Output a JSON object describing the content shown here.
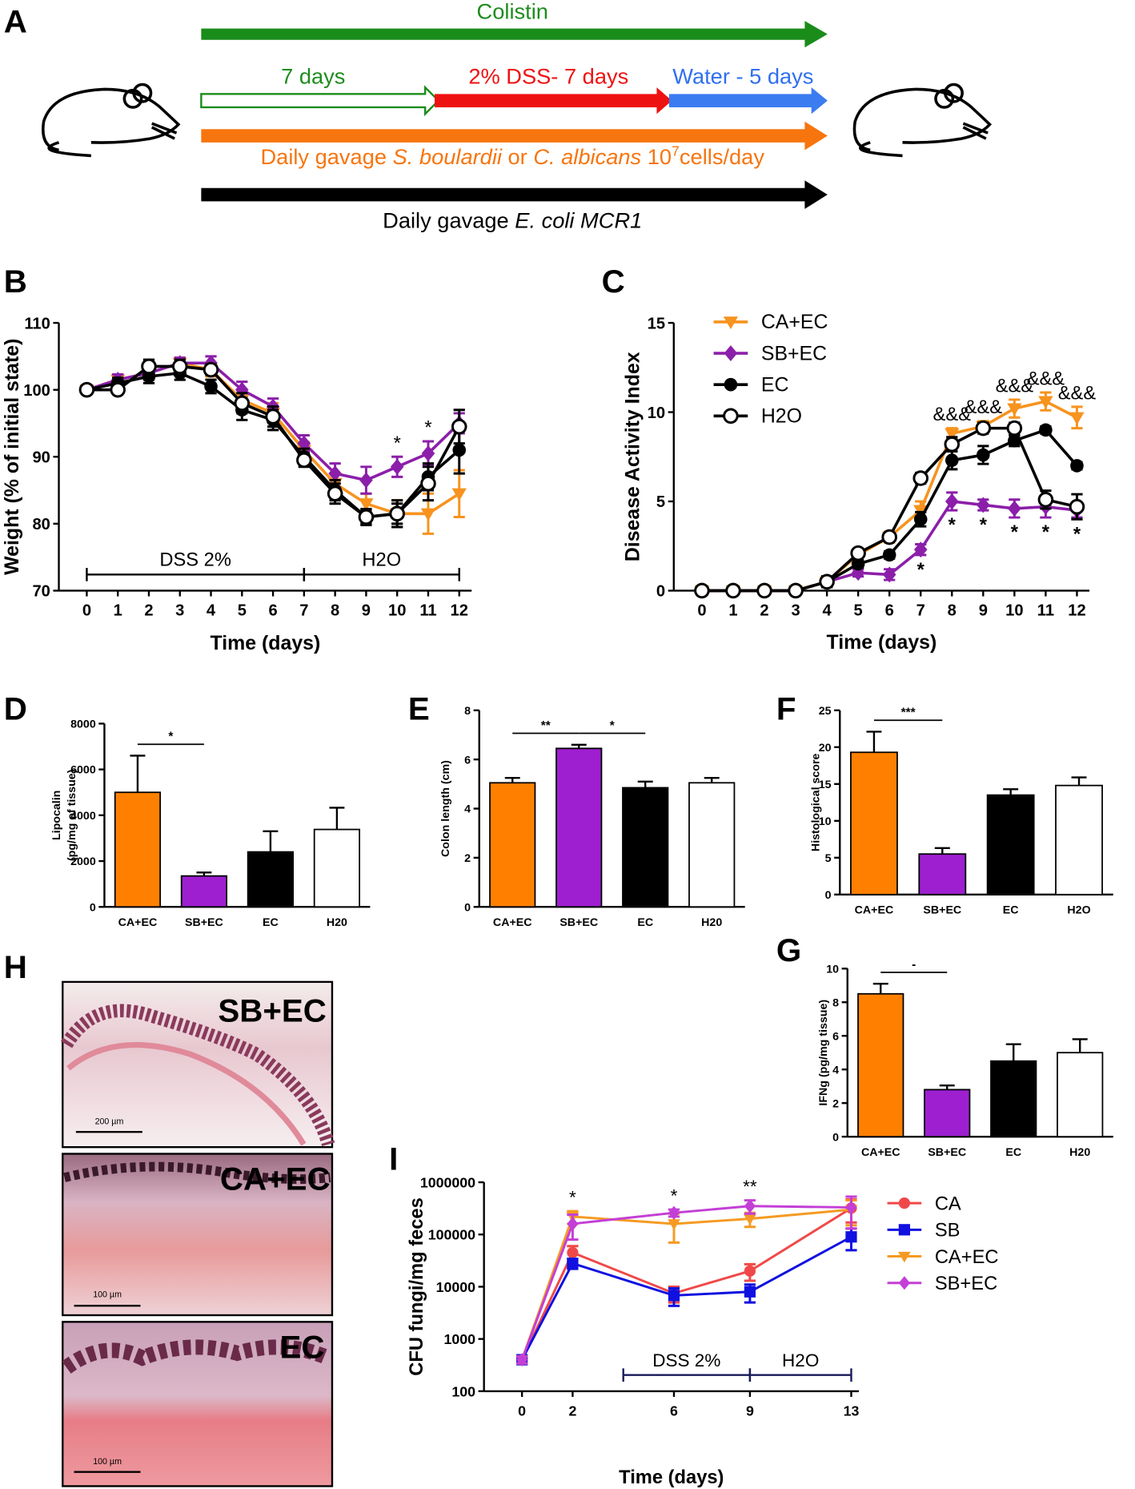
{
  "panel_labels": [
    "A",
    "B",
    "C",
    "D",
    "E",
    "F",
    "G",
    "H",
    "I"
  ],
  "timeline": {
    "colistin": "Colistin",
    "pre": "7 days",
    "dss": "2% DSS- 7 days",
    "water": "Water - 5 days",
    "yeast": [
      "Daily gavage ",
      "S. boulardii",
      " or ",
      "C. albicans",
      " 10",
      "7",
      "cells/day"
    ],
    "ecoli": [
      "Daily gavage ",
      "E. coli MCR1"
    ]
  },
  "histology": {
    "labels": [
      "SB+EC",
      "CA+EC",
      "EC"
    ],
    "scale_bars": [
      "200 µm",
      "100 µm",
      "100 µm"
    ]
  },
  "chart_data": [
    {
      "type": "line",
      "ylabel": "Weight (% of initial state)",
      "xlabel": "Time (days)",
      "x": [
        0,
        1,
        2,
        3,
        4,
        5,
        6,
        7,
        8,
        9,
        10,
        11,
        12
      ],
      "xlim": [
        -0.9,
        12.4
      ],
      "xticks": [
        0,
        1,
        2,
        3,
        4,
        5,
        6,
        7,
        8,
        9,
        10,
        11,
        12
      ],
      "ylim": [
        70,
        110
      ],
      "yticks": [
        70,
        80,
        90,
        100,
        110
      ],
      "series": [
        {
          "color": "#f7931e",
          "marker": "triangle-down",
          "values": [
            100,
            101.5,
            102.5,
            104,
            103,
            98.5,
            96.5,
            91,
            86,
            83,
            81.5,
            81.5,
            84.5
          ],
          "errors": [
            0.5,
            0.8,
            1,
            0.8,
            1,
            1.5,
            1.5,
            1.2,
            1.5,
            1.5,
            2,
            3,
            3.5
          ]
        },
        {
          "color": "#8b1fa9",
          "marker": "diamond",
          "values": [
            100,
            101.5,
            102.5,
            104,
            104,
            100,
            97.5,
            92,
            87.5,
            86.5,
            88.5,
            90.5,
            95
          ],
          "errors": [
            0.5,
            0.8,
            1,
            0.8,
            1,
            1.2,
            1.2,
            1.2,
            1.5,
            2,
            1.5,
            1.8,
            1.5
          ]
        },
        {
          "color": "#000000",
          "marker": "circle",
          "values": [
            100,
            101,
            102,
            102.5,
            100.5,
            97,
            95.5,
            90,
            85,
            81,
            81.5,
            87,
            91
          ],
          "errors": [
            0.5,
            0.8,
            1,
            1,
            1,
            1.5,
            1.5,
            1.2,
            1.5,
            1,
            1.5,
            2,
            3.5
          ]
        },
        {
          "color": "#000000",
          "marker": "open-circle",
          "values": [
            100,
            100,
            103.5,
            103.5,
            103,
            98,
            96,
            89.5,
            84.5,
            81,
            81.5,
            86,
            94.5
          ],
          "errors": [
            0.5,
            0.5,
            1,
            1,
            0.8,
            1.5,
            1.5,
            1,
            1.5,
            1.2,
            2,
            2.5,
            2.5
          ]
        }
      ],
      "annotations": [
        {
          "text": "*",
          "x": 10,
          "side": "above"
        },
        {
          "text": "*",
          "x": 11,
          "side": "above"
        }
      ],
      "periods": [
        {
          "label": "DSS 2%",
          "start": 0,
          "end": 7
        },
        {
          "label": "H2O",
          "start": 7,
          "end": 12
        }
      ]
    },
    {
      "type": "line",
      "ylabel": "Disease Activity Index",
      "xlabel": "Time (days)",
      "x": [
        0,
        1,
        2,
        3,
        4,
        5,
        6,
        7,
        8,
        9,
        10,
        11,
        12
      ],
      "xlim": [
        -0.9,
        12.4
      ],
      "xticks": [
        0,
        1,
        2,
        3,
        4,
        5,
        6,
        7,
        8,
        9,
        10,
        11,
        12
      ],
      "ylim": [
        0,
        15
      ],
      "yticks": [
        0,
        5,
        10,
        15
      ],
      "legend": "upper left",
      "series": [
        {
          "name": "CA+EC",
          "color": "#f7931e",
          "marker": "triangle-down",
          "values": [
            0,
            0,
            0,
            0,
            0.5,
            2,
            3,
            4.5,
            8.8,
            9.2,
            10.2,
            10.6,
            9.7
          ],
          "errors": [
            0,
            0,
            0,
            0,
            0.3,
            0.3,
            0.3,
            0.5,
            0.3,
            0.3,
            0.5,
            0.5,
            0.6
          ]
        },
        {
          "name": "SB+EC",
          "color": "#8b1fa9",
          "marker": "diamond",
          "values": [
            0,
            0,
            0,
            0,
            0.5,
            1,
            0.9,
            2.3,
            5,
            4.8,
            4.6,
            4.7,
            4.5
          ],
          "errors": [
            0,
            0,
            0,
            0,
            0.3,
            0.2,
            0.3,
            0.3,
            0.5,
            0.3,
            0.5,
            0.6,
            0.4
          ]
        },
        {
          "name": "EC",
          "color": "#000000",
          "marker": "circle",
          "values": [
            0,
            0,
            0,
            0,
            0.5,
            1.5,
            2,
            4,
            7.3,
            7.6,
            8.4,
            9,
            7
          ],
          "errors": [
            0,
            0,
            0,
            0,
            0.2,
            0.2,
            0.2,
            0.4,
            0.5,
            0.5,
            0.3,
            0.2,
            0.2
          ]
        },
        {
          "name": "H2O",
          "color": "#000000",
          "marker": "open-circle",
          "values": [
            0,
            0,
            0,
            0,
            0.5,
            2.1,
            3,
            6.3,
            8.2,
            9.1,
            9.1,
            5.1,
            4.7
          ],
          "errors": [
            0,
            0,
            0,
            0,
            0.3,
            0.2,
            0.2,
            0.3,
            0.4,
            0.3,
            0.3,
            0.5,
            0.7
          ]
        }
      ],
      "annotations": [
        {
          "text": "&&&",
          "x": 8,
          "side": "above"
        },
        {
          "text": "&&&",
          "x": 9,
          "side": "above"
        },
        {
          "text": "&&&",
          "x": 10,
          "side": "above"
        },
        {
          "text": "&&&",
          "x": 11,
          "side": "above"
        },
        {
          "text": "&&&",
          "x": 12,
          "side": "above"
        },
        {
          "text": "*",
          "x": 7,
          "side": "below"
        },
        {
          "text": "*",
          "x": 8,
          "side": "below"
        },
        {
          "text": "*",
          "x": 9,
          "side": "below"
        },
        {
          "text": "*",
          "x": 10,
          "side": "below"
        },
        {
          "text": "*",
          "x": 11,
          "side": "below"
        },
        {
          "text": "*",
          "x": 12,
          "side": "below"
        }
      ]
    },
    {
      "type": "bar",
      "ylabel": [
        "Lipocalin",
        "(pg/mg of tissue)"
      ],
      "categories": [
        "CA+EC",
        "SB+EC",
        "EC",
        "H20"
      ],
      "values": [
        5000,
        1350,
        2400,
        3380
      ],
      "errors": [
        1600,
        150,
        900,
        950
      ],
      "colors": [
        "#ff8000",
        "#9d1fd0",
        "#000000",
        "#ffffff"
      ],
      "ylim": [
        0,
        8000
      ],
      "yticks": [
        0,
        2000,
        4000,
        6000,
        8000
      ],
      "significance": [
        {
          "from": 0,
          "to": 1,
          "label": "*"
        }
      ]
    },
    {
      "type": "bar",
      "ylabel": [
        "Colon length (cm)"
      ],
      "categories": [
        "CA+EC",
        "SB+EC",
        "EC",
        "H20"
      ],
      "values": [
        5.05,
        6.45,
        4.85,
        5.05
      ],
      "errors": [
        0.2,
        0.15,
        0.25,
        0.2
      ],
      "colors": [
        "#ff8000",
        "#9d1fd0",
        "#000000",
        "#ffffff"
      ],
      "ylim": [
        0,
        8
      ],
      "yticks": [
        0,
        2,
        4,
        6,
        8
      ],
      "significance": [
        {
          "from": 0,
          "to": 1,
          "label": "**"
        },
        {
          "from": 1,
          "to": 2,
          "label": "*"
        }
      ]
    },
    {
      "type": "bar",
      "ylabel": [
        "Histological score"
      ],
      "categories": [
        "CA+EC",
        "SB+EC",
        "EC",
        "H2O"
      ],
      "values": [
        19.3,
        5.5,
        13.5,
        14.8
      ],
      "errors": [
        2.8,
        0.8,
        0.8,
        1.1
      ],
      "colors": [
        "#ff8000",
        "#9d1fd0",
        "#000000",
        "#ffffff"
      ],
      "ylim": [
        0,
        25
      ],
      "yticks": [
        0,
        5,
        10,
        15,
        20,
        25
      ],
      "significance": [
        {
          "from": 0,
          "to": 1,
          "label": "***"
        }
      ]
    },
    {
      "type": "bar",
      "ylabel": [
        "IFNg (pg/mg tissue)"
      ],
      "categories": [
        "CA+EC",
        "SB+EC",
        "EC",
        "H20"
      ],
      "values": [
        8.5,
        2.8,
        4.5,
        5.0
      ],
      "errors": [
        0.6,
        0.25,
        1.0,
        0.8
      ],
      "colors": [
        "#ff8000",
        "#9d1fd0",
        "#000000",
        "#ffffff"
      ],
      "ylim": [
        0,
        10
      ],
      "yticks": [
        0,
        2,
        4,
        6,
        8,
        10
      ],
      "significance": [
        {
          "from": 0,
          "to": 1,
          "label": "-"
        }
      ]
    },
    {
      "type": "line",
      "ylog": true,
      "ylabel": "CFU fungi/mg feces",
      "xlabel": "Time (days)",
      "x": [
        0,
        2,
        6,
        9,
        13
      ],
      "xlim": [
        -1.5,
        13.3
      ],
      "xticks": [
        0,
        2,
        6,
        9,
        13
      ],
      "ylim": [
        100,
        1000000
      ],
      "yticks": [
        100,
        1000,
        10000,
        100000,
        1000000
      ],
      "legend": "right",
      "series": [
        {
          "name": "CA",
          "color": "#f04848",
          "marker": "circle",
          "values": [
            400,
            45000,
            7500,
            20000,
            320000
          ],
          "errors": [
            60,
            15000,
            2500,
            7000,
            150000
          ]
        },
        {
          "name": "SB",
          "color": "#1010e0",
          "marker": "square",
          "values": [
            400,
            28000,
            6800,
            8000,
            90000
          ],
          "errors": [
            60,
            6000,
            2500,
            3000,
            40000
          ]
        },
        {
          "name": "CA+EC",
          "color": "#f59a23",
          "marker": "triangle-down",
          "values": [
            400,
            220000,
            160000,
            200000,
            300000
          ],
          "errors": [
            60,
            60000,
            90000,
            60000,
            150000
          ]
        },
        {
          "name": "SB+EC",
          "color": "#c33fd6",
          "marker": "diamond",
          "values": [
            400,
            160000,
            260000,
            350000,
            330000
          ],
          "errors": [
            60,
            80000,
            40000,
            100000,
            200000
          ]
        }
      ],
      "annotations": [
        {
          "text": "*",
          "x": 2,
          "side": "above"
        },
        {
          "text": "*",
          "x": 6,
          "side": "above"
        },
        {
          "text": "**",
          "x": 9,
          "side": "above"
        }
      ],
      "periods": [
        {
          "label": "DSS 2%",
          "start": 4,
          "end": 9
        },
        {
          "label": "H2O",
          "start": 9,
          "end": 13
        }
      ]
    }
  ]
}
